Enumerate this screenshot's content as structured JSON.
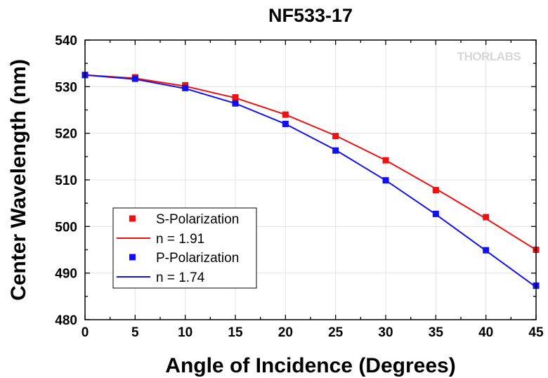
{
  "chart_data": {
    "type": "line",
    "title": "NF533-17",
    "xlabel": "Angle of Incidence (Degrees)",
    "ylabel": "Center Wavelength (nm)",
    "xlim": [
      0,
      45
    ],
    "ylim": [
      480,
      540
    ],
    "xticks": [
      0,
      5,
      10,
      15,
      20,
      25,
      30,
      35,
      40,
      45
    ],
    "yticks": [
      480,
      490,
      500,
      510,
      520,
      530,
      540
    ],
    "grid": true,
    "legend_placement": "lower-left",
    "watermark": "THORLABS",
    "colors": {
      "s": "#ee1111",
      "p": "#1111ee"
    },
    "series": [
      {
        "name": "S-Polarization",
        "kind": "markers",
        "color": "#ee1111",
        "x": [
          0,
          5,
          10,
          15,
          20,
          25,
          30,
          35,
          40,
          45
        ],
        "y": [
          532.5,
          532.0,
          530.3,
          527.7,
          524.0,
          519.4,
          514.2,
          507.8,
          502.0,
          495.0
        ]
      },
      {
        "name": "n = 1.91",
        "kind": "line",
        "color": "#ee1111",
        "x": [
          0,
          5,
          10,
          15,
          20,
          25,
          30,
          35,
          40,
          45
        ],
        "y": [
          532.5,
          531.8,
          530.1,
          527.6,
          524.0,
          519.5,
          514.2,
          508.1,
          501.7,
          495.0
        ]
      },
      {
        "name": "P-Polarization",
        "kind": "markers",
        "color": "#1111ee",
        "x": [
          0,
          5,
          10,
          15,
          20,
          25,
          30,
          35,
          40,
          45
        ],
        "y": [
          532.5,
          531.7,
          529.7,
          526.4,
          522.0,
          516.3,
          509.9,
          502.7,
          494.9,
          487.3
        ]
      },
      {
        "name": "n = 1.74",
        "kind": "line",
        "color": "#1111ee",
        "x": [
          0,
          5,
          10,
          15,
          20,
          25,
          30,
          35,
          40,
          45
        ],
        "y": [
          532.5,
          531.6,
          529.6,
          526.4,
          522.0,
          516.4,
          509.9,
          502.6,
          494.8,
          487.0
        ]
      }
    ]
  }
}
